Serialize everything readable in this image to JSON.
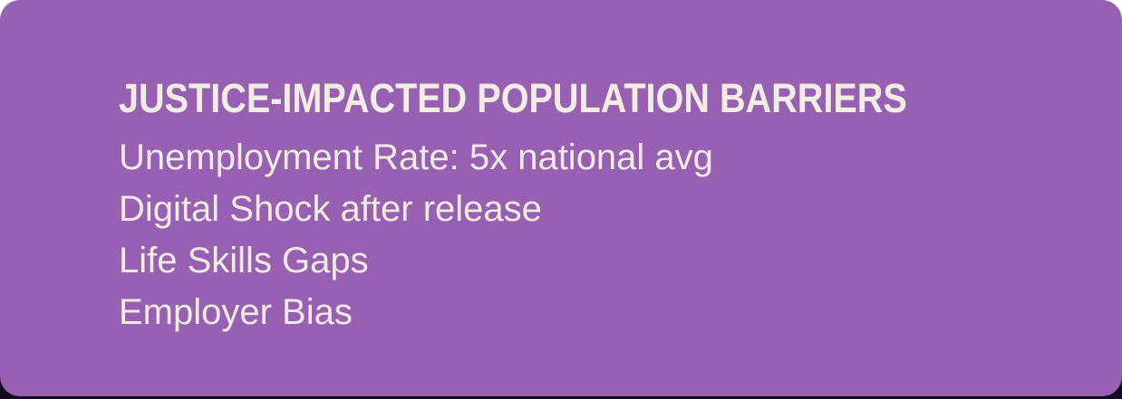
{
  "card": {
    "title": "JUSTICE-IMPACTED POPULATION BARRIERS",
    "items": [
      "Unemployment Rate: 5x national avg",
      "Digital Shock after release",
      "Life Skills Gaps",
      "Employer Bias"
    ]
  },
  "theme": {
    "card-bg": "#9760B3",
    "title-color": "#F2EDE3",
    "body-color": "#F0EBE1",
    "edge-color": "#120d1c",
    "page-bg": "#ffffff"
  }
}
